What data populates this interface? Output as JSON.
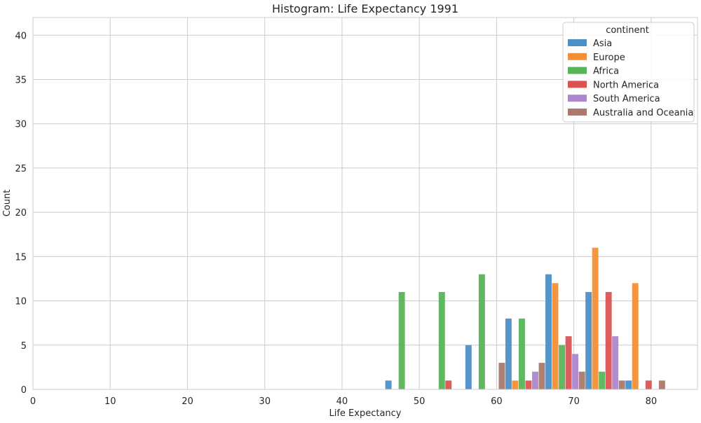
{
  "chart_data": {
    "type": "bar",
    "title": "Histogram: Life Expectancy 1991",
    "xlabel": "Life Expectancy",
    "ylabel": "Count",
    "xlim": [
      0,
      86
    ],
    "ylim": [
      0,
      42
    ],
    "xticks": [
      0,
      10,
      20,
      30,
      40,
      50,
      60,
      70,
      80
    ],
    "yticks": [
      0,
      5,
      10,
      15,
      20,
      25,
      30,
      35,
      40
    ],
    "grid": true,
    "legend": {
      "title": "continent",
      "placement": "top-right"
    },
    "bin_width": 5.18,
    "bins": [
      {
        "x_start": 45.6,
        "x_end": 50.78
      },
      {
        "x_start": 50.78,
        "x_end": 55.96
      },
      {
        "x_start": 55.96,
        "x_end": 61.14
      },
      {
        "x_start": 61.14,
        "x_end": 66.32
      },
      {
        "x_start": 66.32,
        "x_end": 71.5
      },
      {
        "x_start": 71.5,
        "x_end": 76.68
      },
      {
        "x_start": 76.68,
        "x_end": 81.86
      }
    ],
    "series": [
      {
        "name": "Asia",
        "color": "#4c8fc7",
        "values": [
          1,
          0,
          5,
          8,
          13,
          11,
          1
        ]
      },
      {
        "name": "Europe",
        "color": "#f39035",
        "values": [
          0,
          0,
          0,
          1,
          12,
          16,
          12
        ]
      },
      {
        "name": "Africa",
        "color": "#57b458",
        "values": [
          11,
          11,
          13,
          8,
          5,
          2,
          0
        ]
      },
      {
        "name": "North America",
        "color": "#db5353",
        "values": [
          0,
          1,
          0,
          1,
          6,
          11,
          1
        ]
      },
      {
        "name": "South America",
        "color": "#ad87cc",
        "values": [
          0,
          0,
          0,
          2,
          4,
          6,
          0
        ]
      },
      {
        "name": "Australia and Oceania",
        "color": "#a8796c",
        "values": [
          0,
          0,
          3,
          3,
          2,
          1,
          1
        ]
      }
    ]
  }
}
